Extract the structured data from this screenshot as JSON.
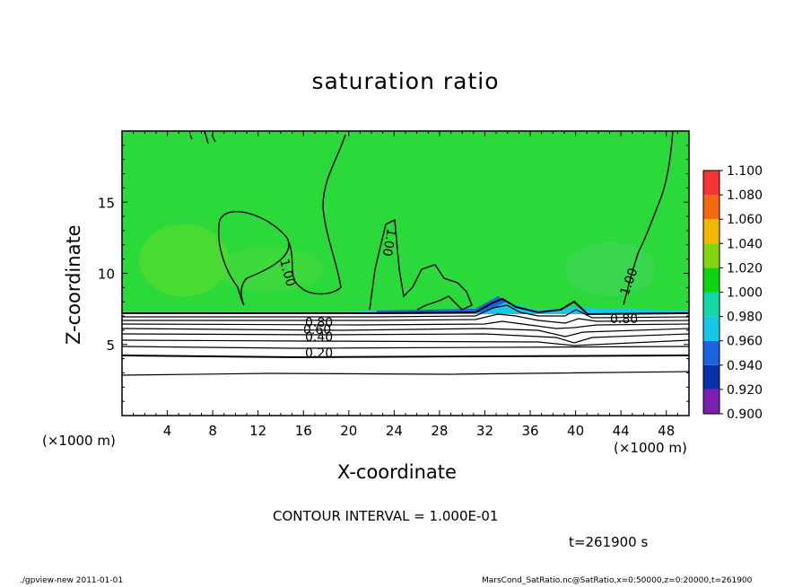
{
  "chart_data": {
    "type": "heatmap",
    "title": "saturation ratio",
    "xlabel": "X-coordinate",
    "ylabel": "Z-coordinate",
    "x_unit_left": "(×1000 m)",
    "x_unit_right": "(×1000 m)",
    "xlim": [
      0,
      50
    ],
    "ylim": [
      0,
      20
    ],
    "x_ticks": [
      4,
      8,
      12,
      16,
      20,
      24,
      28,
      32,
      36,
      40,
      44,
      48
    ],
    "y_ticks": [
      5,
      10,
      15
    ],
    "colorbar": {
      "levels": [
        0.9,
        0.92,
        0.94,
        0.96,
        0.98,
        1.0,
        1.02,
        1.04,
        1.06,
        1.08,
        1.1
      ],
      "labels": [
        "0.900",
        "0.920",
        "0.940",
        "0.960",
        "0.980",
        "1.000",
        "1.020",
        "1.040",
        "1.060",
        "1.080",
        "1.100"
      ],
      "colors": [
        "#7a1fb0",
        "#0a2fa8",
        "#1a64e0",
        "#16c8e6",
        "#14d9a6",
        "#0fd40f",
        "#84d412",
        "#f2b800",
        "#f26a10",
        "#f53535",
        "#f8a0a0"
      ]
    },
    "contour_lines": [
      {
        "label": "0.20",
        "z": 4.5
      },
      {
        "label": "0.40",
        "z": 5.6
      },
      {
        "label": "0.60",
        "z": 6.2
      },
      {
        "label": "0.80",
        "z": 6.8
      },
      {
        "label": "1.00",
        "z": 7.2
      }
    ],
    "contour_interval_text": "CONTOUR INTERVAL = 1.000E-01",
    "time_text": "t=261900 s"
  },
  "footer": {
    "left": "./gpview-new 2011-01-01",
    "right": "MarsCond_SatRatio.nc@SatRatio,x=0:50000,z=0:20000,t=261900"
  }
}
